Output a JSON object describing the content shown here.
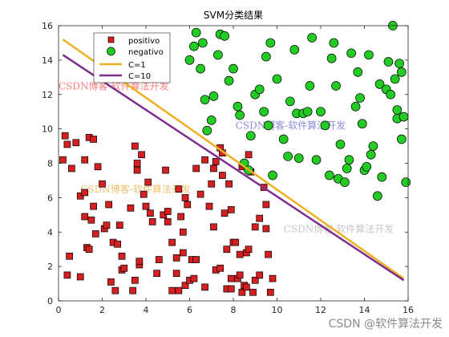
{
  "chart_data": {
    "type": "scatter",
    "title": "SVM分类结果",
    "xlabel": "",
    "ylabel": "",
    "xlim": [
      0,
      16
    ],
    "ylim": [
      0,
      16
    ],
    "x_ticks": [
      0,
      2,
      4,
      6,
      8,
      10,
      12,
      14,
      16
    ],
    "y_ticks": [
      0,
      2,
      4,
      6,
      8,
      10,
      12,
      14,
      16
    ],
    "grid": false,
    "legend_position": "top-left",
    "series": [
      {
        "name": "positivo",
        "marker": "square",
        "color": "#d42020",
        "points": [
          [
            0.2,
            8.2
          ],
          [
            0.3,
            9.6
          ],
          [
            0.4,
            9.1
          ],
          [
            0.4,
            1.5
          ],
          [
            0.5,
            2.6
          ],
          [
            0.6,
            7.7
          ],
          [
            0.8,
            9.2
          ],
          [
            1.0,
            6.1
          ],
          [
            1.0,
            1.4
          ],
          [
            1.2,
            8.2
          ],
          [
            1.2,
            6.3
          ],
          [
            1.2,
            4.9
          ],
          [
            1.3,
            3.1
          ],
          [
            1.4,
            3.0
          ],
          [
            1.4,
            9.5
          ],
          [
            1.5,
            4.7
          ],
          [
            1.6,
            9.4
          ],
          [
            1.6,
            5.5
          ],
          [
            1.7,
            3.9
          ],
          [
            1.8,
            7.8
          ],
          [
            2.0,
            6.8
          ],
          [
            2.1,
            4.2
          ],
          [
            2.2,
            4.4
          ],
          [
            2.3,
            5.6
          ],
          [
            2.4,
            1.1
          ],
          [
            2.5,
            3.4
          ],
          [
            2.6,
            0.6
          ],
          [
            2.7,
            3.3
          ],
          [
            2.8,
            4.4
          ],
          [
            2.9,
            1.8
          ],
          [
            2.9,
            2.6
          ],
          [
            3.0,
            1.9
          ],
          [
            3.3,
            5.4
          ],
          [
            3.4,
            0.6
          ],
          [
            3.5,
            1.2
          ],
          [
            3.5,
            9.0
          ],
          [
            3.6,
            7.6
          ],
          [
            3.6,
            8.0
          ],
          [
            3.7,
            2.1
          ],
          [
            3.7,
            2.3
          ],
          [
            3.8,
            8.5
          ],
          [
            3.9,
            6.2
          ],
          [
            4.0,
            5.5
          ],
          [
            4.1,
            6.9
          ],
          [
            4.2,
            5.1
          ],
          [
            4.3,
            4.6
          ],
          [
            4.5,
            1.6
          ],
          [
            4.6,
            2.4
          ],
          [
            4.8,
            5.0
          ],
          [
            4.9,
            7.6
          ],
          [
            5.0,
            4.6
          ],
          [
            5.0,
            5.2
          ],
          [
            5.2,
            0.6
          ],
          [
            5.2,
            3.4
          ],
          [
            5.4,
            2.5
          ],
          [
            5.4,
            1.6
          ],
          [
            5.5,
            6.5
          ],
          [
            5.5,
            0.6
          ],
          [
            5.6,
            4.9
          ],
          [
            5.7,
            4.0
          ],
          [
            5.7,
            2.8
          ],
          [
            5.8,
            6.0
          ],
          [
            5.8,
            0.9
          ],
          [
            5.9,
            5.6
          ],
          [
            6.0,
            1.2
          ],
          [
            6.1,
            2.4
          ],
          [
            6.2,
            1.3
          ],
          [
            6.3,
            2.4
          ],
          [
            6.3,
            7.7
          ],
          [
            6.5,
            6.2
          ],
          [
            6.7,
            0.8
          ],
          [
            6.7,
            8.2
          ],
          [
            6.9,
            5.5
          ],
          [
            7.0,
            6.8
          ],
          [
            7.1,
            7.7
          ],
          [
            7.1,
            4.3
          ],
          [
            7.2,
            8.1
          ],
          [
            7.2,
            1.8
          ],
          [
            7.4,
            8.9
          ],
          [
            7.4,
            1.9
          ],
          [
            7.5,
            8.6
          ],
          [
            7.5,
            7.3
          ],
          [
            7.6,
            5.1
          ],
          [
            7.7,
            3.0
          ],
          [
            7.7,
            0.7
          ],
          [
            7.8,
            6.8
          ],
          [
            7.9,
            1.3
          ],
          [
            7.9,
            0.7
          ],
          [
            7.9,
            5.3
          ],
          [
            8.0,
            3.4
          ],
          [
            8.1,
            3.4
          ],
          [
            8.2,
            1.3
          ],
          [
            8.3,
            2.7
          ],
          [
            8.3,
            1.5
          ],
          [
            8.4,
            0.5
          ],
          [
            8.4,
            7.8
          ],
          [
            8.5,
            0.9
          ],
          [
            8.6,
            2.8
          ],
          [
            8.6,
            0.8
          ],
          [
            8.7,
            8.5
          ],
          [
            8.7,
            3.0
          ],
          [
            8.8,
            7.5
          ],
          [
            8.9,
            0.5
          ],
          [
            9.0,
            1.2
          ],
          [
            9.0,
            4.3
          ],
          [
            9.2,
            4.8
          ],
          [
            9.2,
            1.5
          ],
          [
            9.4,
            6.6
          ],
          [
            9.5,
            5.6
          ],
          [
            9.5,
            4.2
          ],
          [
            9.6,
            2.7
          ],
          [
            9.7,
            0.5
          ],
          [
            9.8,
            1.3
          ]
        ]
      },
      {
        "name": "negativo",
        "marker": "circle",
        "color": "#22cc22",
        "points": [
          [
            6.0,
            14.0
          ],
          [
            6.2,
            14.8
          ],
          [
            6.3,
            15.6
          ],
          [
            6.5,
            13.5
          ],
          [
            6.6,
            15.0
          ],
          [
            6.7,
            11.7
          ],
          [
            6.8,
            9.9
          ],
          [
            7.0,
            10.5
          ],
          [
            7.1,
            11.9
          ],
          [
            7.3,
            14.3
          ],
          [
            7.4,
            15.5
          ],
          [
            7.6,
            15.4
          ],
          [
            7.8,
            12.8
          ],
          [
            8.0,
            13.5
          ],
          [
            8.2,
            11.3
          ],
          [
            8.3,
            10.8
          ],
          [
            8.5,
            8.0
          ],
          [
            8.7,
            7.6
          ],
          [
            8.8,
            9.6
          ],
          [
            9.0,
            12.0
          ],
          [
            9.2,
            12.3
          ],
          [
            9.4,
            11.0
          ],
          [
            9.5,
            14.2
          ],
          [
            9.6,
            10.2
          ],
          [
            9.7,
            15.0
          ],
          [
            9.8,
            7.3
          ],
          [
            10.0,
            12.9
          ],
          [
            10.3,
            9.4
          ],
          [
            10.5,
            8.4
          ],
          [
            10.6,
            11.6
          ],
          [
            10.8,
            14.6
          ],
          [
            10.9,
            10.9
          ],
          [
            11.0,
            8.3
          ],
          [
            11.2,
            10.9
          ],
          [
            11.4,
            11.0
          ],
          [
            11.5,
            12.5
          ],
          [
            11.6,
            15.3
          ],
          [
            11.8,
            8.2
          ],
          [
            12.0,
            11.0
          ],
          [
            12.2,
            10.2
          ],
          [
            12.4,
            7.3
          ],
          [
            12.5,
            14.1
          ],
          [
            12.6,
            15.0
          ],
          [
            12.7,
            12.5
          ],
          [
            12.8,
            7.1
          ],
          [
            12.9,
            9.1
          ],
          [
            13.1,
            6.9
          ],
          [
            13.2,
            7.7
          ],
          [
            13.3,
            8.2
          ],
          [
            13.4,
            14.4
          ],
          [
            13.6,
            11.3
          ],
          [
            13.7,
            13.3
          ],
          [
            13.8,
            11.8
          ],
          [
            13.9,
            10.3
          ],
          [
            14.0,
            7.6
          ],
          [
            14.1,
            7.8
          ],
          [
            14.2,
            14.3
          ],
          [
            14.3,
            8.5
          ],
          [
            14.4,
            9.0
          ],
          [
            14.6,
            6.1
          ],
          [
            14.7,
            12.6
          ],
          [
            14.8,
            7.2
          ],
          [
            15.0,
            12.3
          ],
          [
            15.1,
            13.9
          ],
          [
            15.2,
            12.0
          ],
          [
            15.3,
            16.0
          ],
          [
            15.4,
            12.9
          ],
          [
            15.5,
            10.6
          ],
          [
            15.5,
            11.1
          ],
          [
            15.6,
            13.8
          ],
          [
            15.7,
            13.3
          ],
          [
            15.7,
            9.4
          ],
          [
            15.8,
            10.7
          ],
          [
            15.9,
            6.9
          ]
        ]
      },
      {
        "name": "C=1",
        "type": "line",
        "color": "#edb120",
        "x": [
          0.2,
          15.8
        ],
        "y": [
          15.2,
          1.3
        ]
      },
      {
        "name": "C=10",
        "type": "line",
        "color": "#7e2f8e",
        "x": [
          0.2,
          15.8
        ],
        "y": [
          14.3,
          1.2
        ]
      }
    ],
    "watermarks": [
      {
        "text": "CSDN博客-软件算法开发",
        "x": 0,
        "y": 12.3,
        "color": "#ff7d7d"
      },
      {
        "text": "CSDN博客-软件算法开发",
        "x": 8.1,
        "y": 10.0,
        "color": "#8a8ad8"
      },
      {
        "text": "CSDN博客-软件算法开发",
        "x": 1.0,
        "y": 6.3,
        "color": "#f0c070"
      },
      {
        "text": "CSDN博客-软件算法开发",
        "x": 10.3,
        "y": 4.0,
        "color": "#c8c8c8"
      }
    ]
  },
  "corner_watermark": "CSDN @软件算法开发"
}
